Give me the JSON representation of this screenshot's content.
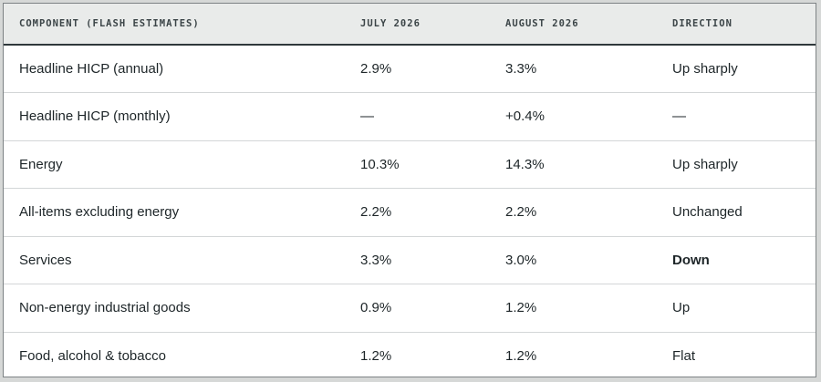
{
  "table": {
    "headers": [
      "COMPONENT (FLASH ESTIMATES)",
      "JULY 2026",
      "AUGUST 2026",
      "DIRECTION"
    ],
    "rows": [
      {
        "component": "Headline HICP (annual)",
        "july": "2.9%",
        "august": "3.3%",
        "direction": "Up sharply",
        "emphasis": false
      },
      {
        "component": "Headline HICP (monthly)",
        "july": "—",
        "august": "+0.4%",
        "direction": "—",
        "emphasis": false
      },
      {
        "component": "Energy",
        "july": "10.3%",
        "august": "14.3%",
        "direction": "Up sharply",
        "emphasis": false
      },
      {
        "component": "All-items excluding energy",
        "july": "2.2%",
        "august": "2.2%",
        "direction": "Unchanged",
        "emphasis": false
      },
      {
        "component": "Services",
        "july": "3.3%",
        "august": "3.0%",
        "direction": "Down",
        "emphasis": true
      },
      {
        "component": "Non-energy industrial goods",
        "july": "0.9%",
        "august": "1.2%",
        "direction": "Up",
        "emphasis": false
      },
      {
        "component": "Food, alcohol & tobacco",
        "july": "1.2%",
        "august": "1.2%",
        "direction": "Flat",
        "emphasis": false
      }
    ]
  },
  "colors": {
    "page_background": "#d6d8d7",
    "header_background": "#e9ebea",
    "text": "#1d2528",
    "row_divider": "#d3d6d7",
    "header_rule": "#2f383b"
  }
}
